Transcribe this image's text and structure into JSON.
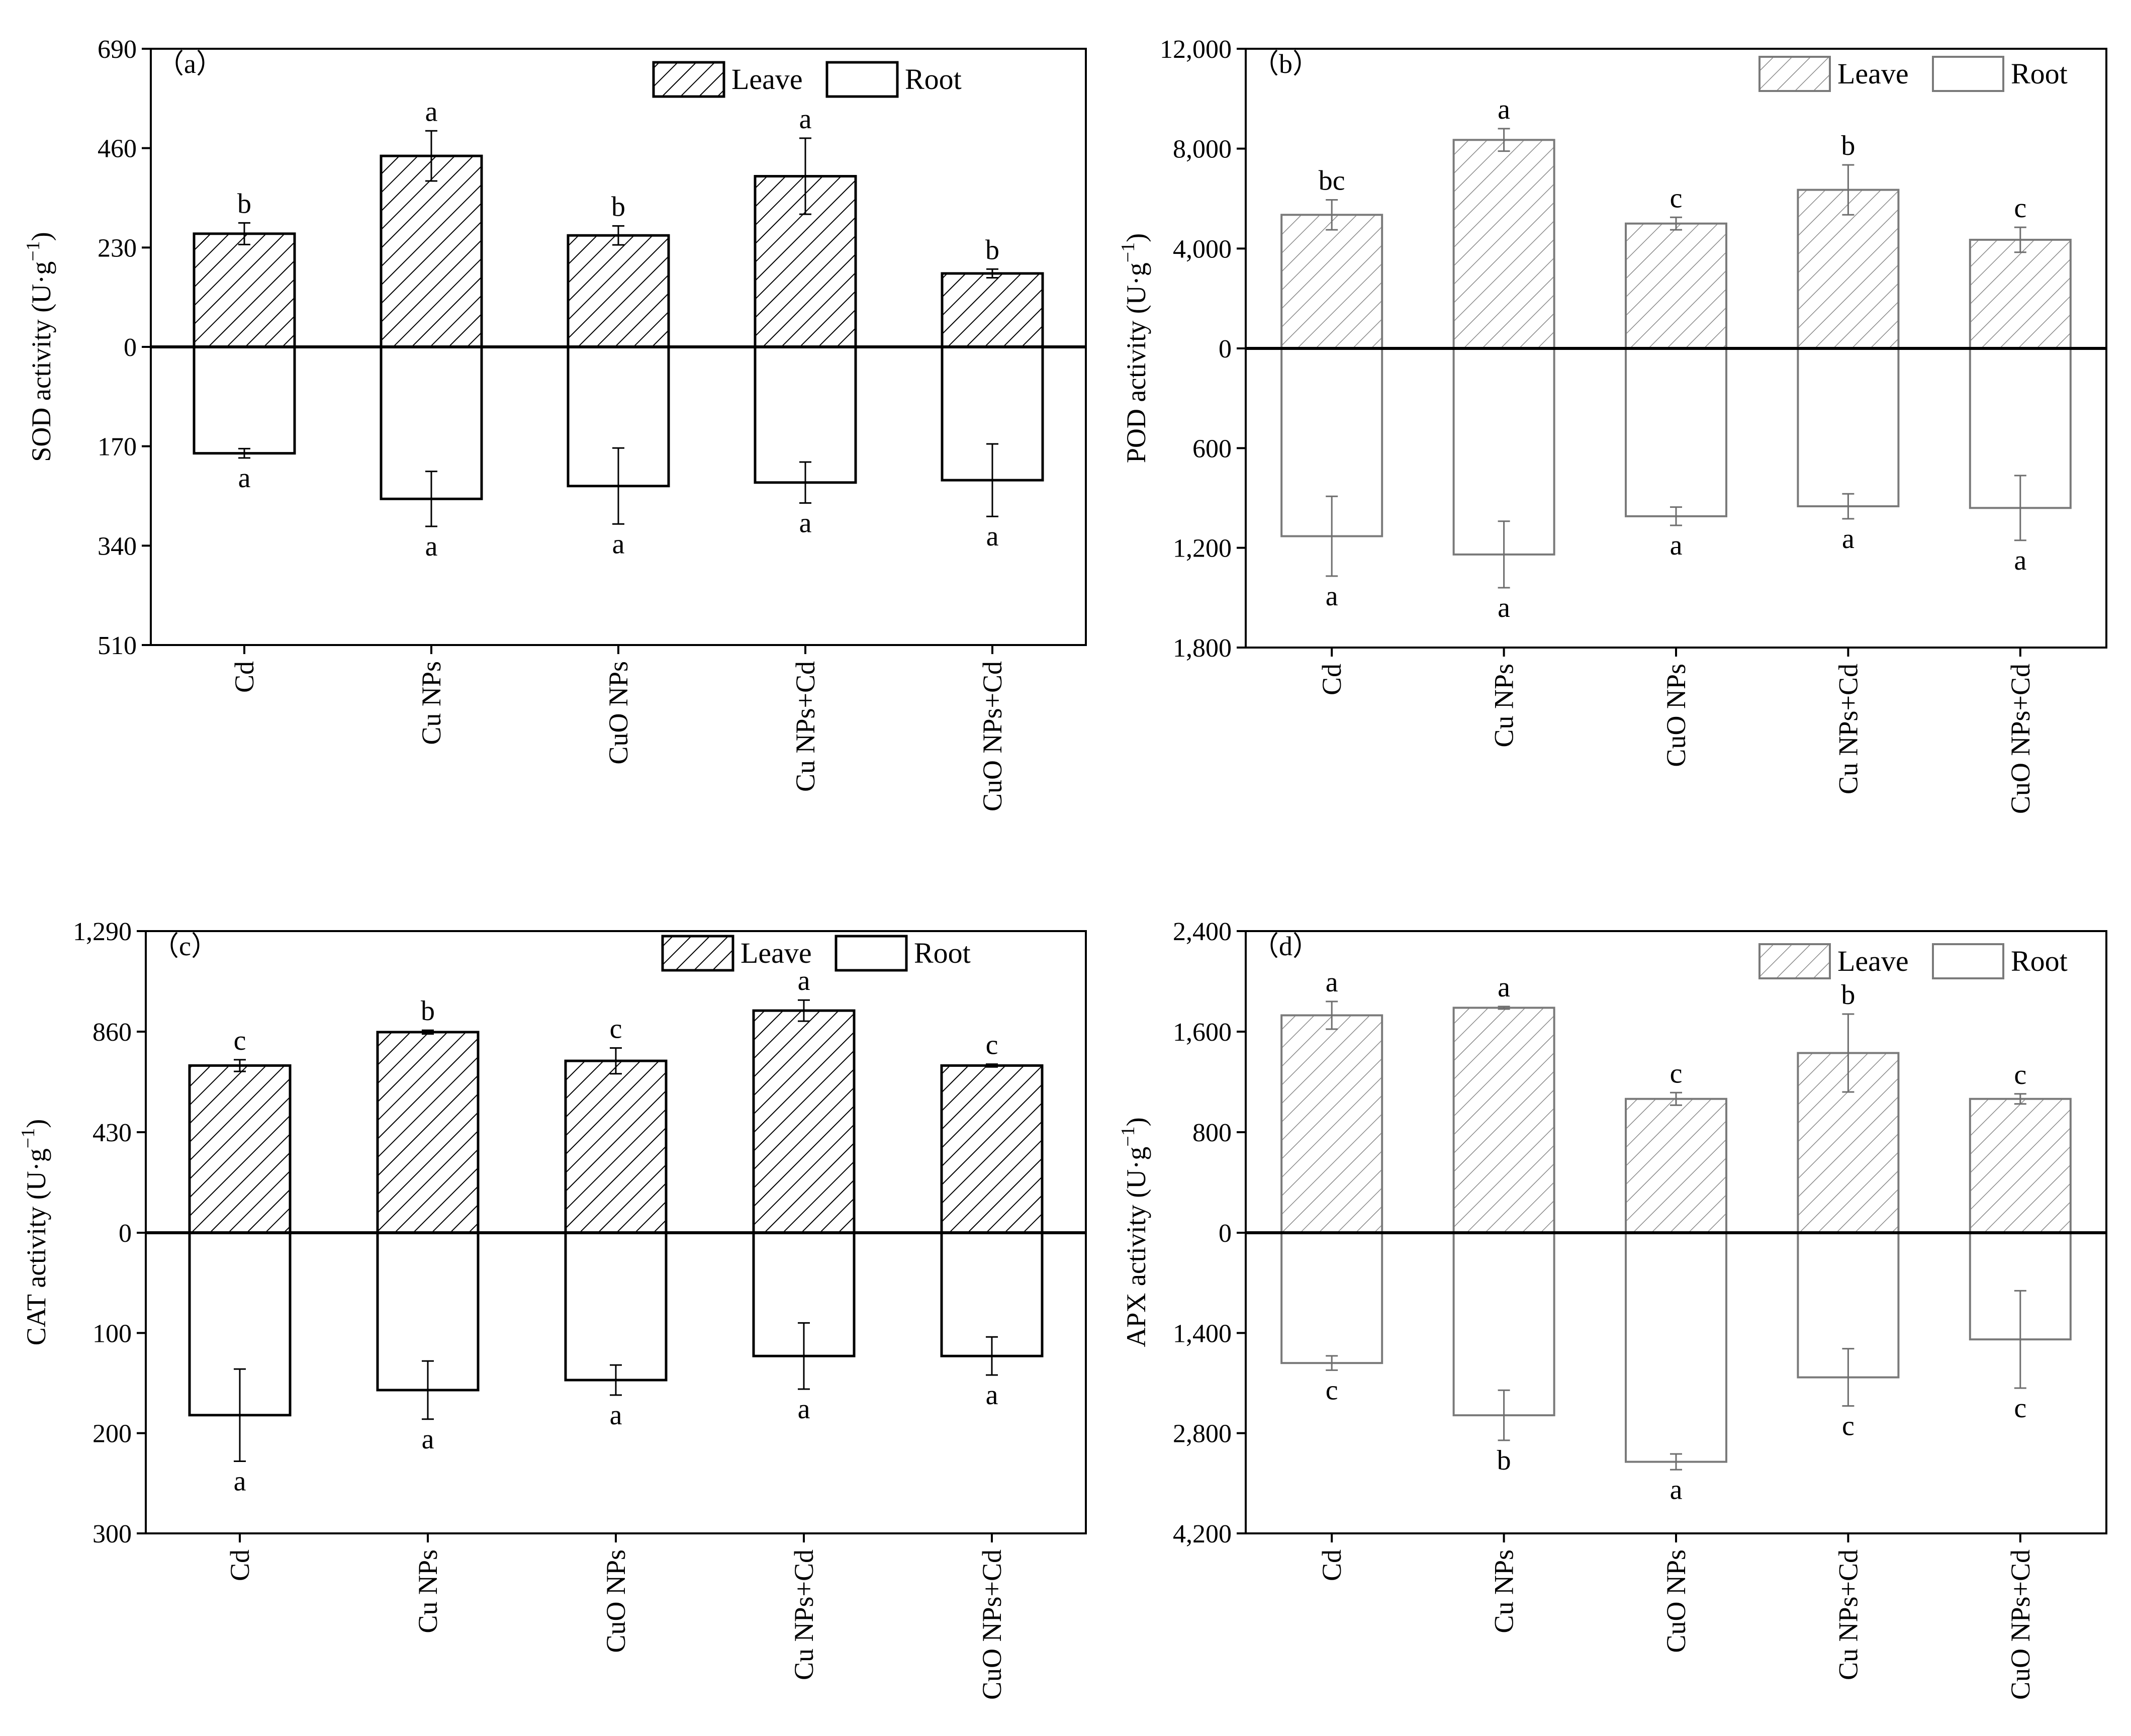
{
  "chart_data": [
    {
      "panel_label": "（a）",
      "type": "bar",
      "ylabel_main": "SOD activity (U·g",
      "ylabel_sup": "−1",
      "ylabel_end": ")",
      "ticks_up": [
        "690",
        "460",
        "230",
        "0"
      ],
      "ticks_down": [
        "170",
        "340",
        "510"
      ],
      "up_max": 690,
      "down_max": 510,
      "categories": [
        "Cd",
        "Cu NPs",
        "CuO NPs",
        "Cu NPs+Cd",
        "CuO NPs+Cd"
      ],
      "legend": [
        "Leave",
        "Root"
      ],
      "dark": true,
      "series": [
        {
          "name": "Leave",
          "values": [
            262,
            442,
            258,
            395,
            170
          ],
          "errors": [
            25,
            58,
            22,
            88,
            10
          ],
          "letters": [
            "b",
            "a",
            "b",
            "a",
            "b"
          ]
        },
        {
          "name": "Root",
          "values": [
            182,
            260,
            238,
            232,
            228
          ],
          "errors": [
            8,
            47,
            65,
            35,
            62
          ],
          "letters": [
            "a",
            "a",
            "a",
            "a",
            "a"
          ]
        }
      ]
    },
    {
      "panel_label": "（b）",
      "type": "bar",
      "ylabel_main": "POD activity (U·g",
      "ylabel_sup": "−1",
      "ylabel_end": ")",
      "ticks_up": [
        "12,000",
        "8,000",
        "4,000",
        "0"
      ],
      "ticks_down": [
        "600",
        "1,200",
        "1,800"
      ],
      "up_max": 12000,
      "down_max": 1800,
      "categories": [
        "Cd",
        "Cu NPs",
        "CuO NPs",
        "Cu NPs+Cd",
        "CuO NPs+Cd"
      ],
      "legend": [
        "Leave",
        "Root"
      ],
      "dark": false,
      "series": [
        {
          "name": "Leave",
          "values": [
            5350,
            8350,
            5000,
            6350,
            4350
          ],
          "errors": [
            600,
            450,
            250,
            1000,
            500
          ],
          "letters": [
            "bc",
            "a",
            "c",
            "b",
            "c"
          ]
        },
        {
          "name": "Root",
          "values": [
            1130,
            1240,
            1010,
            950,
            960
          ],
          "errors": [
            240,
            200,
            55,
            75,
            195
          ],
          "letters": [
            "a",
            "a",
            "a",
            "a",
            "a"
          ]
        }
      ]
    },
    {
      "panel_label": "（c）",
      "type": "bar",
      "ylabel_main": "CAT activity (U·g",
      "ylabel_sup": "−1",
      "ylabel_end": ")",
      "ticks_up": [
        "1,290",
        "860",
        "430",
        "0"
      ],
      "ticks_down": [
        "100",
        "200",
        "300"
      ],
      "up_max": 1290,
      "down_max": 300,
      "categories": [
        "Cd",
        "Cu NPs",
        "CuO NPs",
        "Cu NPs+Cd",
        "CuO NPs+Cd"
      ],
      "legend": [
        "Leave",
        "Root"
      ],
      "dark": true,
      "series": [
        {
          "name": "Leave",
          "values": [
            715,
            858,
            735,
            950,
            715
          ],
          "errors": [
            25,
            8,
            55,
            45,
            6
          ],
          "letters": [
            "c",
            "b",
            "c",
            "a",
            "c"
          ]
        },
        {
          "name": "Root",
          "values": [
            182,
            157,
            147,
            123,
            123
          ],
          "errors": [
            46,
            29,
            15,
            33,
            19
          ],
          "letters": [
            "a",
            "a",
            "a",
            "a",
            "a"
          ]
        }
      ]
    },
    {
      "panel_label": "（d）",
      "type": "bar",
      "ylabel_main": "APX activity (U·g",
      "ylabel_sup": "−1",
      "ylabel_end": ")",
      "ticks_up": [
        "2,400",
        "1,600",
        "800",
        "0"
      ],
      "ticks_down": [
        "1,400",
        "2,800",
        "4,200"
      ],
      "up_max": 2400,
      "down_max": 4200,
      "categories": [
        "Cd",
        "Cu NPs",
        "CuO NPs",
        "Cu NPs+Cd",
        "CuO NPs+Cd"
      ],
      "legend": [
        "Leave",
        "Root"
      ],
      "dark": false,
      "series": [
        {
          "name": "Leave",
          "values": [
            1730,
            1790,
            1065,
            1430,
            1065
          ],
          "errors": [
            110,
            10,
            50,
            310,
            40
          ],
          "letters": [
            "a",
            "a",
            "c",
            "b",
            "c"
          ]
        },
        {
          "name": "Root",
          "values": [
            1820,
            2550,
            3200,
            2020,
            1490
          ],
          "errors": [
            100,
            350,
            110,
            400,
            680
          ],
          "letters": [
            "c",
            "b",
            "a",
            "c",
            "c"
          ]
        }
      ]
    }
  ]
}
